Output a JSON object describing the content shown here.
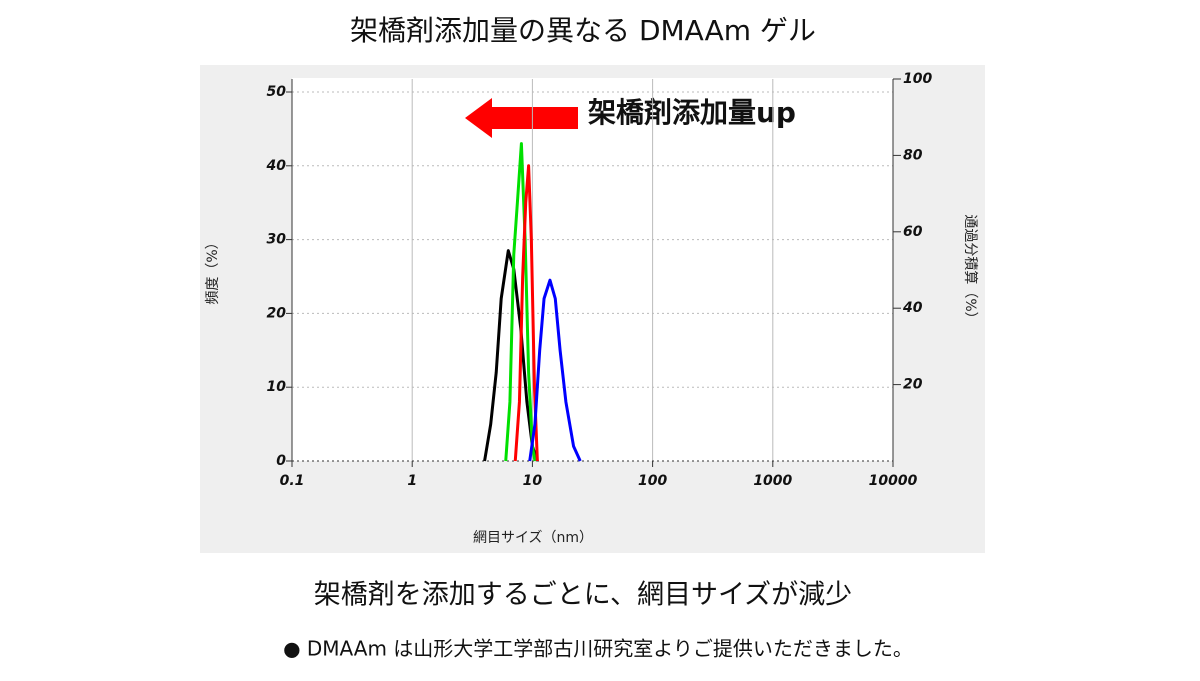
{
  "chart_data": {
    "type": "line",
    "title": "架橋剤添加量の異なる DMAAm ゲル",
    "annotation": "架橋剤添加量up",
    "x_label": "網目サイズ（nm）",
    "y_label": "頻度（%）",
    "y2_label": "通過分積算（%）",
    "caption": "架橋剤を添加するごとに、網目サイズが減少",
    "footnote": "● DMAAm は山形大学工学部古川研究室よりご提供いただきました。",
    "x_scale": "log",
    "xlim": [
      0.1,
      10000
    ],
    "xticks": [
      0.1,
      1,
      10,
      100,
      1000,
      10000
    ],
    "ylim": [
      0,
      50
    ],
    "yticks": [
      0,
      10,
      20,
      30,
      40,
      50
    ],
    "y2lim": [
      0,
      100
    ],
    "y2ticks": [
      20,
      40,
      60,
      80,
      100
    ],
    "grid": true,
    "series": [
      {
        "color": "#000000",
        "x": [
          4.0,
          4.5,
          5,
          5.5,
          6.3,
          7,
          8,
          9,
          10,
          11
        ],
        "values": [
          0,
          5,
          12,
          22,
          28.5,
          26,
          18,
          8,
          2,
          0
        ]
      },
      {
        "color": "#00e000",
        "x": [
          6,
          6.5,
          7,
          7.5,
          8.1,
          8.7,
          9.3,
          10,
          10.5
        ],
        "values": [
          0,
          8,
          28,
          35,
          43,
          30,
          12,
          2,
          0
        ]
      },
      {
        "color": "#ff0000",
        "x": [
          7.2,
          7.8,
          8.3,
          8.8,
          9.3,
          9.8,
          10.4,
          11
        ],
        "values": [
          0,
          8,
          25,
          35,
          40,
          30,
          10,
          0
        ]
      },
      {
        "color": "#0000ff",
        "x": [
          9.5,
          10.5,
          11.5,
          12.5,
          14,
          15.5,
          17,
          19,
          22,
          25
        ],
        "values": [
          0,
          5,
          15,
          22,
          24.5,
          22,
          15,
          8,
          2,
          0
        ]
      }
    ]
  }
}
